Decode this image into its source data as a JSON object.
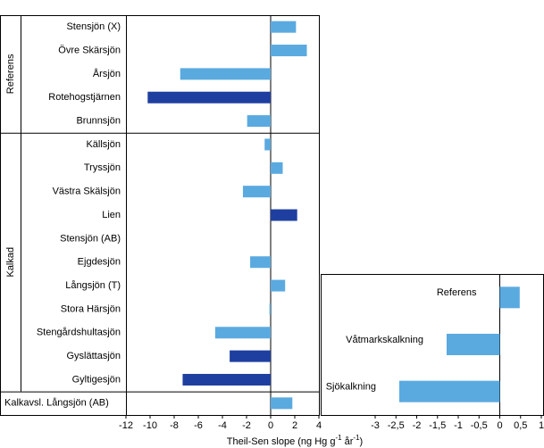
{
  "chart_data": [
    {
      "type": "hbar",
      "categories": [
        "Stensjön (X)",
        "Övre Skärsjön",
        "Årsjön",
        "Rotehogstjärnen",
        "Brunnsjön",
        "Källsjön",
        "Tryssjön",
        "Västra Skälsjön",
        "Lien",
        "Stensjön (AB)",
        "Ejgdesjön",
        "Långsjön (T)",
        "Stora Härsjön",
        "Stengårdshultasjön",
        "Gyslättasjön",
        "Gyltigesjön",
        "Kalkavsl. Långsjön (AB)"
      ],
      "groups": [
        "Referens",
        "Referens",
        "Referens",
        "Referens",
        "Referens",
        "Kalkad",
        "Kalkad",
        "Kalkad",
        "Kalkad",
        "Kalkad",
        "Kalkad",
        "Kalkad",
        "Kalkad",
        "Kalkad",
        "Kalkad",
        "Kalkad",
        null
      ],
      "values": [
        2.1,
        3.0,
        -7.5,
        -10.2,
        -1.95,
        -0.5,
        1.0,
        -2.3,
        2.2,
        0,
        -1.7,
        1.2,
        -0.1,
        -4.6,
        -3.4,
        -7.3,
        1.8
      ],
      "colors": [
        "#5aaae0",
        "#5aaae0",
        "#5aaae0",
        "#1f3fa0",
        "#5aaae0",
        "#5aaae0",
        "#5aaae0",
        "#5aaae0",
        "#1f3fa0",
        "#5aaae0",
        "#5aaae0",
        "#5aaae0",
        "#5aaae0",
        "#5aaae0",
        "#1f3fa0",
        "#1f3fa0",
        "#5aaae0"
      ],
      "xlim": [
        -12,
        4
      ],
      "xticks": [
        -12,
        -10,
        -8,
        -6,
        -4,
        -2,
        0,
        2,
        4
      ],
      "xlabel_parts": [
        "Theil-Sen slope (ng Hg g",
        "-1",
        " år",
        "-1",
        ")"
      ]
    },
    {
      "type": "hbar",
      "categories": [
        "Referens",
        "Våtmarkskalkning",
        "Sjökalkning"
      ],
      "values": [
        0.48,
        -1.28,
        -2.42
      ],
      "color": "#5aaae0",
      "xlim": [
        -3,
        1
      ],
      "xticks": [
        -3,
        {
          "value": -2.5,
          "label": "-2,5"
        },
        -2,
        {
          "value": -1.5,
          "label": "-1,5"
        },
        -1,
        {
          "value": -0.5,
          "label": "-0,5"
        },
        0,
        {
          "value": 0.5,
          "label": "0,5"
        },
        1
      ]
    }
  ]
}
